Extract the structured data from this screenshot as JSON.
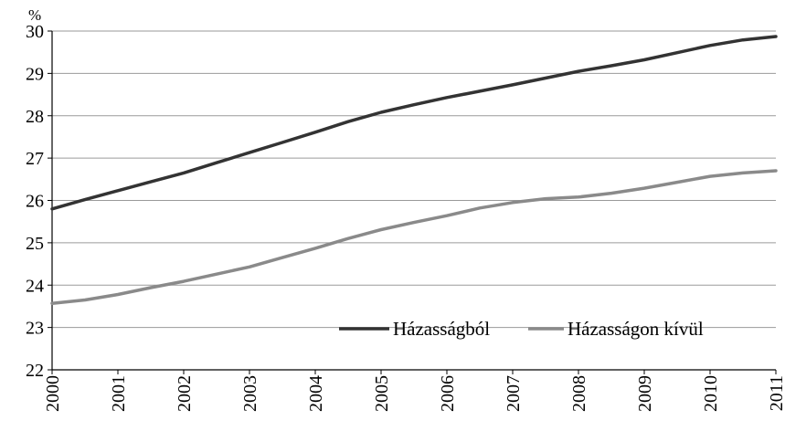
{
  "chart_data": {
    "type": "line",
    "title": "",
    "xlabel": "",
    "ylabel": "%",
    "ylim": [
      22,
      30
    ],
    "yticks": [
      22,
      23,
      24,
      25,
      26,
      27,
      28,
      29,
      30
    ],
    "x": [
      "2000",
      "2001",
      "2002",
      "2003",
      "2004",
      "2005",
      "2006",
      "2007",
      "2008",
      "2009",
      "2010",
      "2011"
    ],
    "x_values": [
      2000,
      2000.5,
      2001,
      2001.5,
      2002,
      2002.5,
      2003,
      2003.5,
      2004,
      2004.5,
      2005,
      2005.5,
      2006,
      2006.5,
      2007,
      2007.5,
      2008,
      2008.5,
      2009,
      2009.5,
      2010,
      2010.5,
      2011
    ],
    "series": [
      {
        "name": "Házasságból",
        "color": "#333333",
        "values": [
          25.8,
          26.02,
          26.23,
          26.44,
          26.65,
          26.89,
          27.13,
          27.37,
          27.61,
          27.86,
          28.08,
          28.26,
          28.43,
          28.58,
          28.73,
          28.89,
          29.05,
          29.18,
          29.32,
          29.49,
          29.66,
          29.79,
          29.87
        ]
      },
      {
        "name": "Házasságon kívül",
        "color": "#8a8a8a",
        "values": [
          23.57,
          23.65,
          23.78,
          23.94,
          24.09,
          24.26,
          24.43,
          24.65,
          24.87,
          25.1,
          25.31,
          25.48,
          25.64,
          25.82,
          25.95,
          26.04,
          26.08,
          26.17,
          26.29,
          26.43,
          26.57,
          26.65,
          26.7
        ]
      }
    ],
    "grid": "horizontal",
    "legend_position": "bottom-right, inside plot"
  }
}
